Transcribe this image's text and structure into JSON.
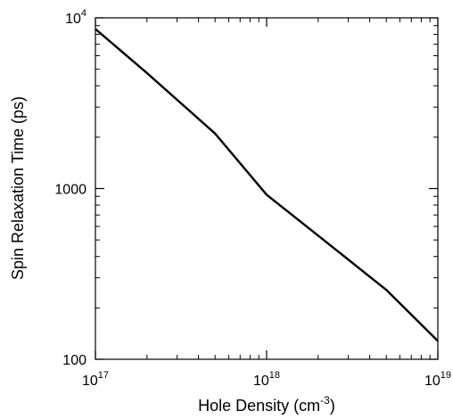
{
  "chart_data": {
    "type": "line",
    "xlabel": "Hole Density (cm",
    "xlabel_sup": "-3",
    "xlabel_tail": ")",
    "ylabel": "Spin Relaxation Time (ps)",
    "x_scale": "log",
    "y_scale": "log",
    "xlim": [
      1e+17,
      1e+19
    ],
    "ylim": [
      100,
      10000
    ],
    "x_ticks": [
      {
        "value": 1e+17,
        "base": "10",
        "exp": "17"
      },
      {
        "value": 1e+18,
        "base": "10",
        "exp": "18"
      },
      {
        "value": 1e+19,
        "base": "10",
        "exp": "19"
      }
    ],
    "y_ticks": [
      {
        "value": 100,
        "base": "100",
        "exp": ""
      },
      {
        "value": 1000,
        "base": "1000",
        "exp": ""
      },
      {
        "value": 10000,
        "base": "10",
        "exp": "4"
      }
    ],
    "grid": false,
    "color": "#000000",
    "series": [
      {
        "x": [
          1e+17,
          2e+17,
          5e+17,
          1e+18,
          2e+18,
          5e+18,
          1e+19
        ],
        "y": [
          8600,
          4750,
          2100,
          920,
          530,
          255,
          128
        ]
      }
    ]
  }
}
